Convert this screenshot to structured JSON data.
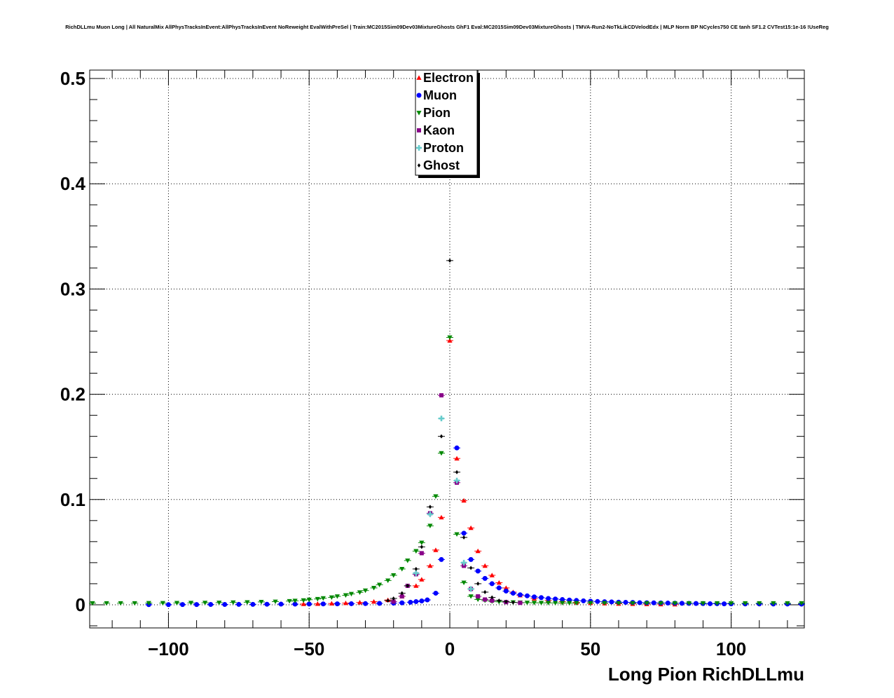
{
  "chart_data": {
    "type": "scatter",
    "title": "RichDLLmu Muon Long | All NaturalMix AllPhysTracksInEvent:AllPhysTracksInEvent NoReweight EvalWithPreSel | Train:MC2015Sim09Dev03MixtureGhosts GhF1 Eval:MC2015Sim09Dev03MixtureGhosts | TMVA-Run2-NoTkLikCDVelodEdx | MLP Norm BP NCycles750 CE tanh SF1.2 CVTest15:1e-16 !UseReg",
    "xlabel": "Long Pion RichDLLmu",
    "ylabel": "",
    "xlim": [
      -128,
      126
    ],
    "ylim": [
      -0.022,
      0.508
    ],
    "x_ticks": [
      {
        "value": -100,
        "label": "−100"
      },
      {
        "value": -50,
        "label": "−50"
      },
      {
        "value": 0,
        "label": "0"
      },
      {
        "value": 50,
        "label": "50"
      },
      {
        "value": 100,
        "label": "100"
      }
    ],
    "y_ticks": [
      {
        "value": 0,
        "label": "0"
      },
      {
        "value": 0.1,
        "label": "0.1"
      },
      {
        "value": 0.2,
        "label": "0.2"
      },
      {
        "value": 0.3,
        "label": "0.3"
      },
      {
        "value": 0.4,
        "label": "0.4"
      },
      {
        "value": 0.5,
        "label": "0.5"
      }
    ],
    "grid": true,
    "legend_position": "top-center",
    "series": [
      {
        "name": "Electron",
        "color": "#ff0000",
        "marker": "triangle-up",
        "points": [
          [
            -52,
            0.0007
          ],
          [
            -47,
            0.0009
          ],
          [
            -42,
            0.0012
          ],
          [
            -37,
            0.0016
          ],
          [
            -32,
            0.0022
          ],
          [
            -27,
            0.003
          ],
          [
            -22,
            0.0045
          ],
          [
            -17,
            0.008
          ],
          [
            -12,
            0.018
          ],
          [
            -10,
            0.024
          ],
          [
            -7,
            0.037
          ],
          [
            -5,
            0.052
          ],
          [
            -3,
            0.083
          ],
          [
            0,
            0.251
          ],
          [
            2.5,
            0.139
          ],
          [
            5,
            0.099
          ],
          [
            7.5,
            0.073
          ],
          [
            10,
            0.051
          ],
          [
            12.5,
            0.037
          ],
          [
            15,
            0.028
          ],
          [
            17.5,
            0.021
          ],
          [
            20,
            0.016
          ],
          [
            22.5,
            0.012
          ],
          [
            25,
            0.009
          ],
          [
            30,
            0.006
          ],
          [
            35,
            0.004
          ],
          [
            40,
            0.003
          ],
          [
            45,
            0.0022
          ],
          [
            50,
            0.0017
          ],
          [
            55,
            0.0013
          ],
          [
            60,
            0.001
          ],
          [
            65,
            0.0008
          ],
          [
            70,
            0.0006
          ],
          [
            75,
            0.0005
          ],
          [
            80,
            0.0004
          ]
        ]
      },
      {
        "name": "Muon",
        "color": "#0000ff",
        "marker": "circle",
        "points": [
          [
            -107,
            0.0001
          ],
          [
            -100,
            0.0001
          ],
          [
            -95,
            0.0002
          ],
          [
            -90,
            0.0002
          ],
          [
            -85,
            0.0003
          ],
          [
            -80,
            0.0003
          ],
          [
            -75,
            0.0004
          ],
          [
            -70,
            0.0004
          ],
          [
            -65,
            0.0005
          ],
          [
            -60,
            0.0006
          ],
          [
            -55,
            0.0006
          ],
          [
            -50,
            0.0007
          ],
          [
            -45,
            0.0008
          ],
          [
            -40,
            0.0009
          ],
          [
            -35,
            0.001
          ],
          [
            -30,
            0.0011
          ],
          [
            -25,
            0.0013
          ],
          [
            -20,
            0.0015
          ],
          [
            -17,
            0.0018
          ],
          [
            -14,
            0.0024
          ],
          [
            -12,
            0.003
          ],
          [
            -10,
            0.0036
          ],
          [
            -8,
            0.0046
          ],
          [
            -5,
            0.011
          ],
          [
            -3,
            0.043
          ],
          [
            2.5,
            0.149
          ],
          [
            5,
            0.068
          ],
          [
            7.5,
            0.043
          ],
          [
            10,
            0.032
          ],
          [
            12.5,
            0.025
          ],
          [
            15,
            0.02
          ],
          [
            17.5,
            0.016
          ],
          [
            20,
            0.013
          ],
          [
            22.5,
            0.011
          ],
          [
            25,
            0.0095
          ],
          [
            27.5,
            0.0085
          ],
          [
            30,
            0.0075
          ],
          [
            32.5,
            0.0068
          ],
          [
            35,
            0.006
          ],
          [
            37.5,
            0.0055
          ],
          [
            40,
            0.005
          ],
          [
            42.5,
            0.0045
          ],
          [
            45,
            0.0041
          ],
          [
            47.5,
            0.0037
          ],
          [
            50,
            0.0034
          ],
          [
            52.5,
            0.0031
          ],
          [
            55,
            0.0029
          ],
          [
            57.5,
            0.0027
          ],
          [
            60,
            0.0025
          ],
          [
            62.5,
            0.0023
          ],
          [
            65,
            0.0022
          ],
          [
            67.5,
            0.002
          ],
          [
            70,
            0.0019
          ],
          [
            72.5,
            0.0018
          ],
          [
            75,
            0.0017
          ],
          [
            77.5,
            0.0016
          ],
          [
            80,
            0.0015
          ],
          [
            82.5,
            0.0014
          ],
          [
            85,
            0.0013
          ],
          [
            87.5,
            0.0012
          ],
          [
            90,
            0.0011
          ],
          [
            92.5,
            0.001
          ],
          [
            95,
            0.001
          ],
          [
            97.5,
            0.0009
          ],
          [
            100,
            0.0009
          ],
          [
            105,
            0.0008
          ],
          [
            110,
            0.0008
          ],
          [
            115,
            0.0007
          ],
          [
            120,
            0.0007
          ],
          [
            125,
            0.0006
          ]
        ]
      },
      {
        "name": "Pion",
        "color": "#008800",
        "marker": "triangle-down",
        "points": [
          [
            -127,
            0.0015
          ],
          [
            -122,
            0.0015
          ],
          [
            -117,
            0.0015
          ],
          [
            -112,
            0.0015
          ],
          [
            -107,
            0.0016
          ],
          [
            -102,
            0.0016
          ],
          [
            -97,
            0.0017
          ],
          [
            -92,
            0.0018
          ],
          [
            -87,
            0.0019
          ],
          [
            -82,
            0.002
          ],
          [
            -77,
            0.0022
          ],
          [
            -72,
            0.0024
          ],
          [
            -67,
            0.0027
          ],
          [
            -62,
            0.003
          ],
          [
            -57,
            0.0035
          ],
          [
            -55,
            0.0038
          ],
          [
            -52,
            0.0042
          ],
          [
            -50,
            0.0048
          ],
          [
            -47,
            0.0055
          ],
          [
            -45,
            0.0062
          ],
          [
            -42,
            0.007
          ],
          [
            -40,
            0.008
          ],
          [
            -37,
            0.009
          ],
          [
            -35,
            0.0103
          ],
          [
            -32,
            0.0118
          ],
          [
            -30,
            0.0135
          ],
          [
            -27,
            0.016
          ],
          [
            -25,
            0.019
          ],
          [
            -22,
            0.023
          ],
          [
            -20,
            0.028
          ],
          [
            -17,
            0.034
          ],
          [
            -15,
            0.042
          ],
          [
            -12,
            0.051
          ],
          [
            -10,
            0.059
          ],
          [
            -7,
            0.075
          ],
          [
            -5,
            0.103
          ],
          [
            -3,
            0.144
          ],
          [
            0,
            0.254
          ],
          [
            2.5,
            0.067
          ],
          [
            5,
            0.021
          ],
          [
            7.5,
            0.008
          ],
          [
            10,
            0.005
          ],
          [
            12.5,
            0.004
          ],
          [
            15,
            0.0032
          ],
          [
            17.5,
            0.0028
          ],
          [
            20,
            0.0025
          ],
          [
            22.5,
            0.0023
          ],
          [
            25,
            0.0021
          ],
          [
            27.5,
            0.002
          ],
          [
            30,
            0.0019
          ],
          [
            32.5,
            0.0018
          ],
          [
            35,
            0.0018
          ],
          [
            37.5,
            0.0017
          ],
          [
            40,
            0.0017
          ],
          [
            42.5,
            0.0016
          ],
          [
            45,
            0.0016
          ],
          [
            50,
            0.0016
          ],
          [
            55,
            0.0016
          ],
          [
            60,
            0.0015
          ],
          [
            65,
            0.0015
          ],
          [
            70,
            0.0015
          ],
          [
            75,
            0.0015
          ],
          [
            80,
            0.0015
          ],
          [
            85,
            0.0015
          ],
          [
            90,
            0.0015
          ],
          [
            95,
            0.0015
          ],
          [
            100,
            0.0015
          ],
          [
            105,
            0.0015
          ],
          [
            110,
            0.0015
          ],
          [
            115,
            0.0015
          ],
          [
            120,
            0.0015
          ],
          [
            125,
            0.0015
          ]
        ]
      },
      {
        "name": "Kaon",
        "color": "#880088",
        "marker": "square",
        "points": [
          [
            -20,
            0.003
          ],
          [
            -17,
            0.008
          ],
          [
            -15,
            0.018
          ],
          [
            -12,
            0.029
          ],
          [
            -10,
            0.049
          ],
          [
            -7,
            0.087
          ],
          [
            -3,
            0.199
          ],
          [
            2.5,
            0.116
          ],
          [
            5,
            0.037
          ],
          [
            7.5,
            0.015
          ],
          [
            10,
            0.008
          ],
          [
            12.5,
            0.005
          ],
          [
            15,
            0.004
          ],
          [
            20,
            0.0025
          ],
          [
            25,
            0.0018
          ]
        ]
      },
      {
        "name": "Proton",
        "color": "#66cccc",
        "marker": "cross",
        "points": [
          [
            -12,
            0.03
          ],
          [
            -7,
            0.086
          ],
          [
            -3,
            0.177
          ],
          [
            2.5,
            0.118
          ],
          [
            5,
            0.04
          ],
          [
            7.5,
            0.015
          ]
        ]
      },
      {
        "name": "Ghost",
        "color": "#000000",
        "marker": "diamond",
        "points": [
          [
            -22,
            0.004
          ],
          [
            -20,
            0.006
          ],
          [
            -17,
            0.011
          ],
          [
            -15,
            0.018
          ],
          [
            -12,
            0.034
          ],
          [
            -10,
            0.055
          ],
          [
            -7,
            0.093
          ],
          [
            -3,
            0.16
          ],
          [
            0,
            0.327
          ],
          [
            2.5,
            0.126
          ],
          [
            5,
            0.064
          ],
          [
            7.5,
            0.035
          ],
          [
            10,
            0.02
          ],
          [
            12.5,
            0.012
          ],
          [
            15,
            0.007
          ],
          [
            17.5,
            0.004
          ],
          [
            20,
            0.003
          ],
          [
            22.5,
            0.0022
          ]
        ]
      }
    ]
  }
}
